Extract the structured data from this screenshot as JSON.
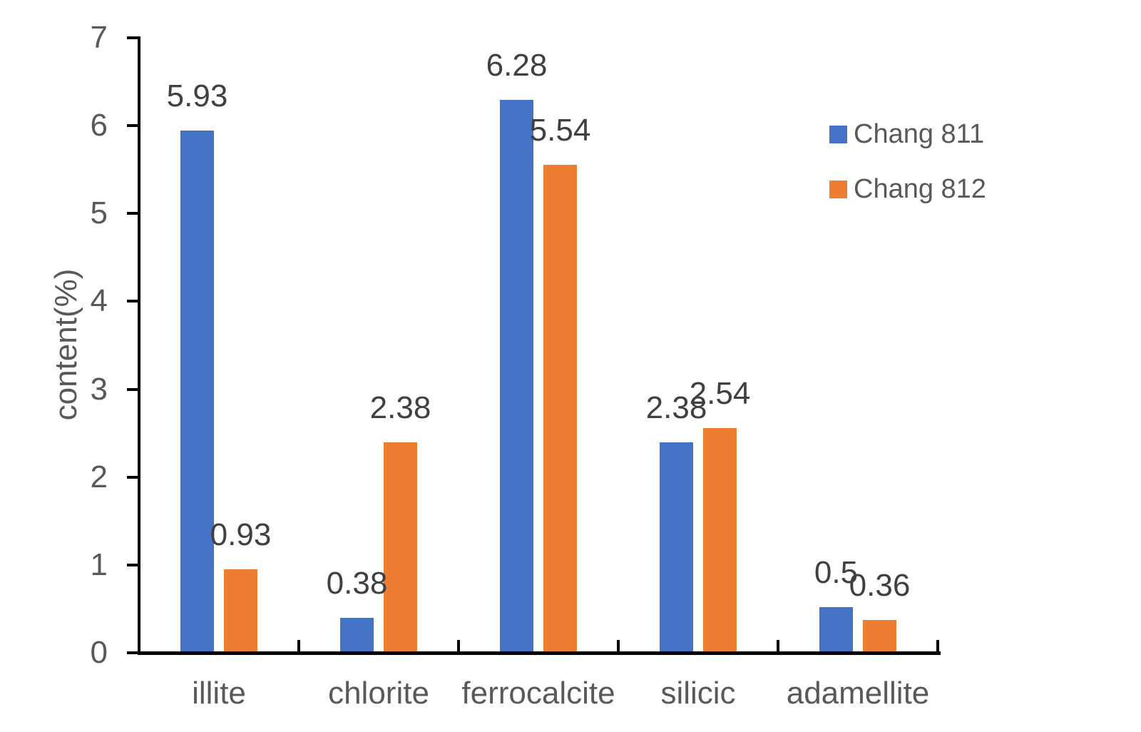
{
  "chart_data": {
    "type": "bar",
    "title": "",
    "ylabel": "content(%)",
    "xlabel": "",
    "ylim": [
      0,
      7
    ],
    "y_ticks": [
      0,
      1,
      2,
      3,
      4,
      5,
      6,
      7
    ],
    "grid": false,
    "legend_position": "upper-right",
    "data_labels": true,
    "categories": [
      "illite",
      "chlorite",
      "ferrocalcite",
      "silicic",
      "adamellite"
    ],
    "series": [
      {
        "name": "Chang 811",
        "color": "#4472C4",
        "values": [
          5.93,
          0.38,
          6.28,
          2.38,
          0.5
        ],
        "labels": [
          "5.93",
          "0.38",
          "6.28",
          "2.38",
          "0.5"
        ]
      },
      {
        "name": "Chang 812",
        "color": "#ED7D31",
        "values": [
          0.93,
          2.38,
          5.54,
          2.54,
          0.36
        ],
        "labels": [
          "0.93",
          "2.38",
          "5.54",
          "2.54",
          "0.36"
        ]
      }
    ],
    "colors": {
      "data_label_text": "#404040",
      "axis_text": "#595959",
      "axis_line": "#000000",
      "background": "#FFFFFF"
    }
  }
}
